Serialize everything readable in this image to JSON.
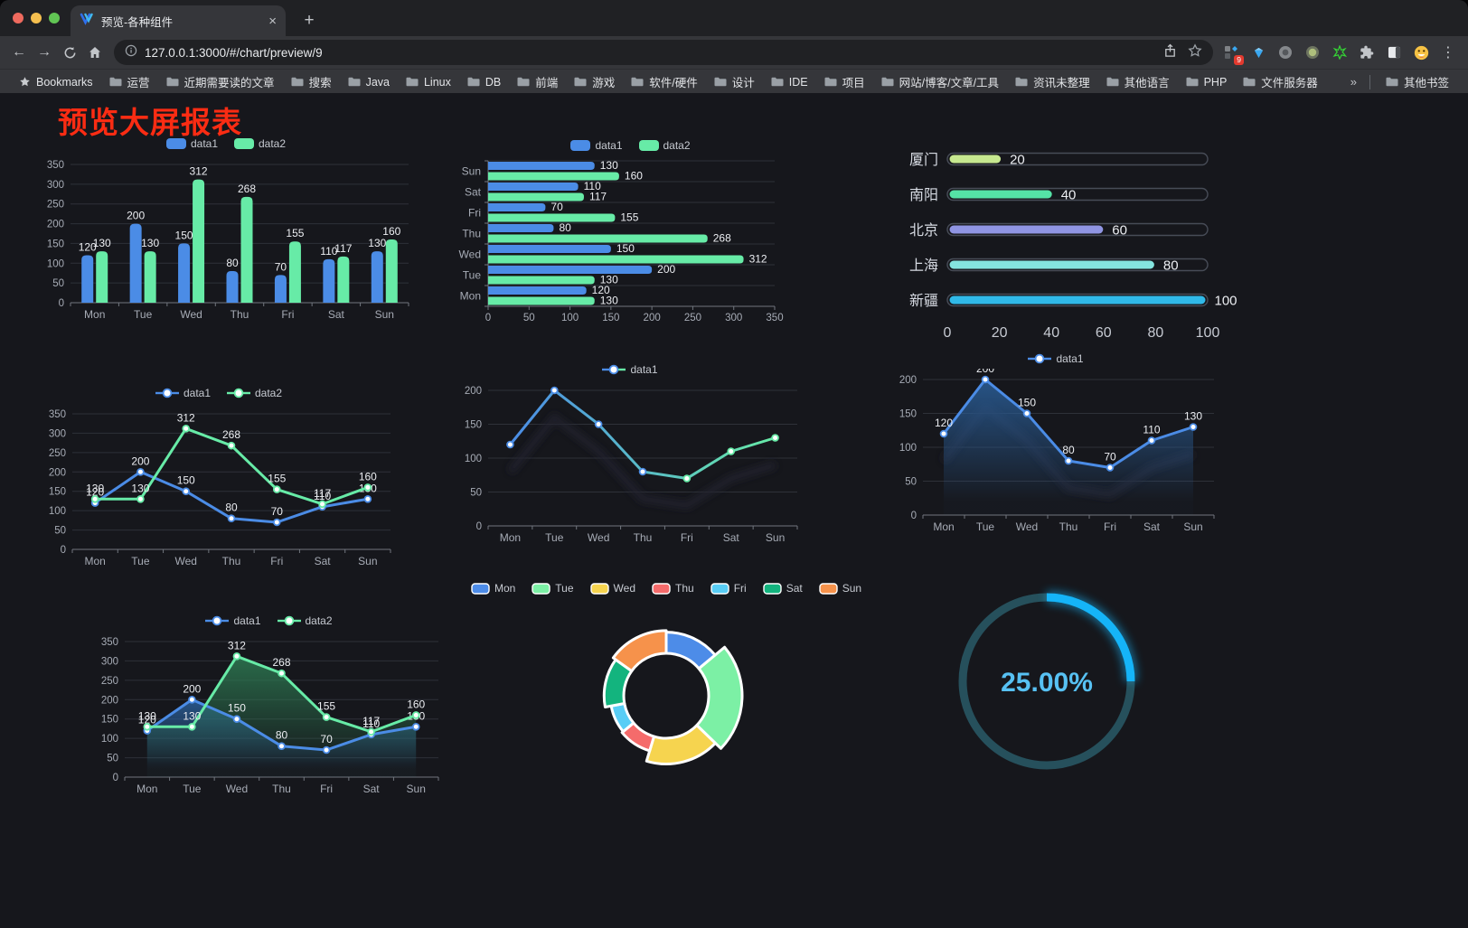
{
  "browser": {
    "tab": {
      "title": "预览-各种组件",
      "close_glyph": "×",
      "new_tab_glyph": "+"
    },
    "url": "127.0.0.1:3000/#/chart/preview/9",
    "extension_badge": "9",
    "bookmarks_bar": {
      "bookmarks_label": "Bookmarks",
      "folders": [
        "运营",
        "近期需要读的文章",
        "搜索",
        "Java",
        "Linux",
        "DB",
        "前端",
        "游戏",
        "软件/硬件",
        "设计",
        "IDE",
        "项目",
        "网站/博客/文章/工具",
        "资讯未整理",
        "其他语言",
        "PHP",
        "文件服务器"
      ],
      "overflow_glyph": "»",
      "other_bookmarks_label": "其他书签"
    }
  },
  "page": {
    "title": "预览大屏报表",
    "title_color": "#fb2c13",
    "background": "#16171c"
  },
  "chart_data": [
    {
      "id": "c1",
      "type": "bar",
      "title": "",
      "legend_position": "top",
      "grid": true,
      "categories": [
        "Mon",
        "Tue",
        "Wed",
        "Thu",
        "Fri",
        "Sat",
        "Sun"
      ],
      "series": [
        {
          "name": "data1",
          "color": "#4b8ce6",
          "values": [
            120,
            200,
            150,
            80,
            70,
            110,
            130
          ]
        },
        {
          "name": "data2",
          "color": "#67eba7",
          "values": [
            130,
            130,
            312,
            268,
            155,
            117,
            160
          ]
        }
      ],
      "ylim": [
        0,
        350
      ],
      "ystep": 50,
      "value_labels": true
    },
    {
      "id": "c2",
      "type": "bar-horizontal",
      "title": "",
      "legend_position": "top",
      "grid": true,
      "categories": [
        "Mon",
        "Tue",
        "Wed",
        "Thu",
        "Fri",
        "Sat",
        "Sun"
      ],
      "series": [
        {
          "name": "data1",
          "color": "#4b8ce6",
          "values": [
            120,
            200,
            150,
            80,
            70,
            110,
            130
          ]
        },
        {
          "name": "data2",
          "color": "#67eba7",
          "values": [
            130,
            130,
            312,
            268,
            155,
            117,
            160
          ]
        }
      ],
      "xlim": [
        0,
        350
      ],
      "xstep": 50,
      "value_labels": true
    },
    {
      "id": "c3",
      "type": "progress-bars",
      "title": "",
      "max": 100,
      "xticks": [
        0,
        20,
        40,
        60,
        80,
        100
      ],
      "rows": [
        {
          "label": "厦门",
          "value": 20,
          "color": "#c6e88f"
        },
        {
          "label": "南阳",
          "value": 40,
          "color": "#55e3a6"
        },
        {
          "label": "北京",
          "value": 60,
          "color": "#9095e3"
        },
        {
          "label": "上海",
          "value": 80,
          "color": "#84e4de"
        },
        {
          "label": "新疆",
          "value": 100,
          "color": "#30b9e8"
        }
      ]
    },
    {
      "id": "c4",
      "type": "line",
      "title": "",
      "legend_position": "top",
      "grid": true,
      "categories": [
        "Mon",
        "Tue",
        "Wed",
        "Thu",
        "Fri",
        "Sat",
        "Sun"
      ],
      "series": [
        {
          "name": "data1",
          "color": "#4b8ce6",
          "values": [
            120,
            200,
            150,
            80,
            70,
            110,
            130
          ]
        },
        {
          "name": "data2",
          "color": "#67eba7",
          "values": [
            130,
            130,
            312,
            268,
            155,
            117,
            160
          ]
        }
      ],
      "ylim": [
        0,
        350
      ],
      "ystep": 50,
      "value_labels": true
    },
    {
      "id": "c5",
      "type": "line-gradient",
      "title": "",
      "legend_position": "top",
      "grid": true,
      "categories": [
        "Mon",
        "Tue",
        "Wed",
        "Thu",
        "Fri",
        "Sat",
        "Sun"
      ],
      "series": [
        {
          "name": "data1",
          "color": "#4b8ce6",
          "color2": "#67eba7",
          "values": [
            120,
            200,
            150,
            80,
            70,
            110,
            130
          ]
        }
      ],
      "ylim": [
        0,
        200
      ],
      "ystep": 50,
      "value_labels": false
    },
    {
      "id": "c6",
      "type": "area",
      "title": "",
      "legend_position": "top",
      "grid": true,
      "categories": [
        "Mon",
        "Tue",
        "Wed",
        "Thu",
        "Fri",
        "Sat",
        "Sun"
      ],
      "series": [
        {
          "name": "data1",
          "color": "#4b8ce6",
          "values": [
            120,
            200,
            150,
            80,
            70,
            110,
            130
          ]
        }
      ],
      "ylim": [
        0,
        200
      ],
      "ystep": 50,
      "value_labels": true
    },
    {
      "id": "c7",
      "type": "line-area",
      "title": "",
      "legend_position": "top",
      "grid": true,
      "categories": [
        "Mon",
        "Tue",
        "Wed",
        "Thu",
        "Fri",
        "Sat",
        "Sun"
      ],
      "series": [
        {
          "name": "data1",
          "color": "#4b8ce6",
          "area": "#2a5f9a",
          "values": [
            120,
            200,
            150,
            80,
            70,
            110,
            130
          ]
        },
        {
          "name": "data2",
          "color": "#67eba7",
          "area": "#2d7a52",
          "values": [
            130,
            130,
            312,
            268,
            155,
            117,
            160
          ]
        }
      ],
      "ylim": [
        0,
        350
      ],
      "ystep": 50,
      "value_labels": true
    },
    {
      "id": "c8",
      "type": "pie",
      "subtype": "rose-doughnut",
      "title": "",
      "legend_position": "top",
      "categories": [
        "Mon",
        "Tue",
        "Wed",
        "Thu",
        "Fri",
        "Sat",
        "Sun"
      ],
      "values": [
        120,
        200,
        150,
        80,
        70,
        110,
        130
      ],
      "colors": [
        "#4d8ce8",
        "#7cf0a5",
        "#f6d44f",
        "#f56b6b",
        "#58cdf5",
        "#13b47e",
        "#f6924b"
      ]
    },
    {
      "id": "c9",
      "type": "gauge",
      "title": "",
      "label": "25.00%",
      "percent": 25,
      "arc_color": "#15b4f8",
      "track_color": "#26505c",
      "text_color": "#57c1f3"
    }
  ]
}
